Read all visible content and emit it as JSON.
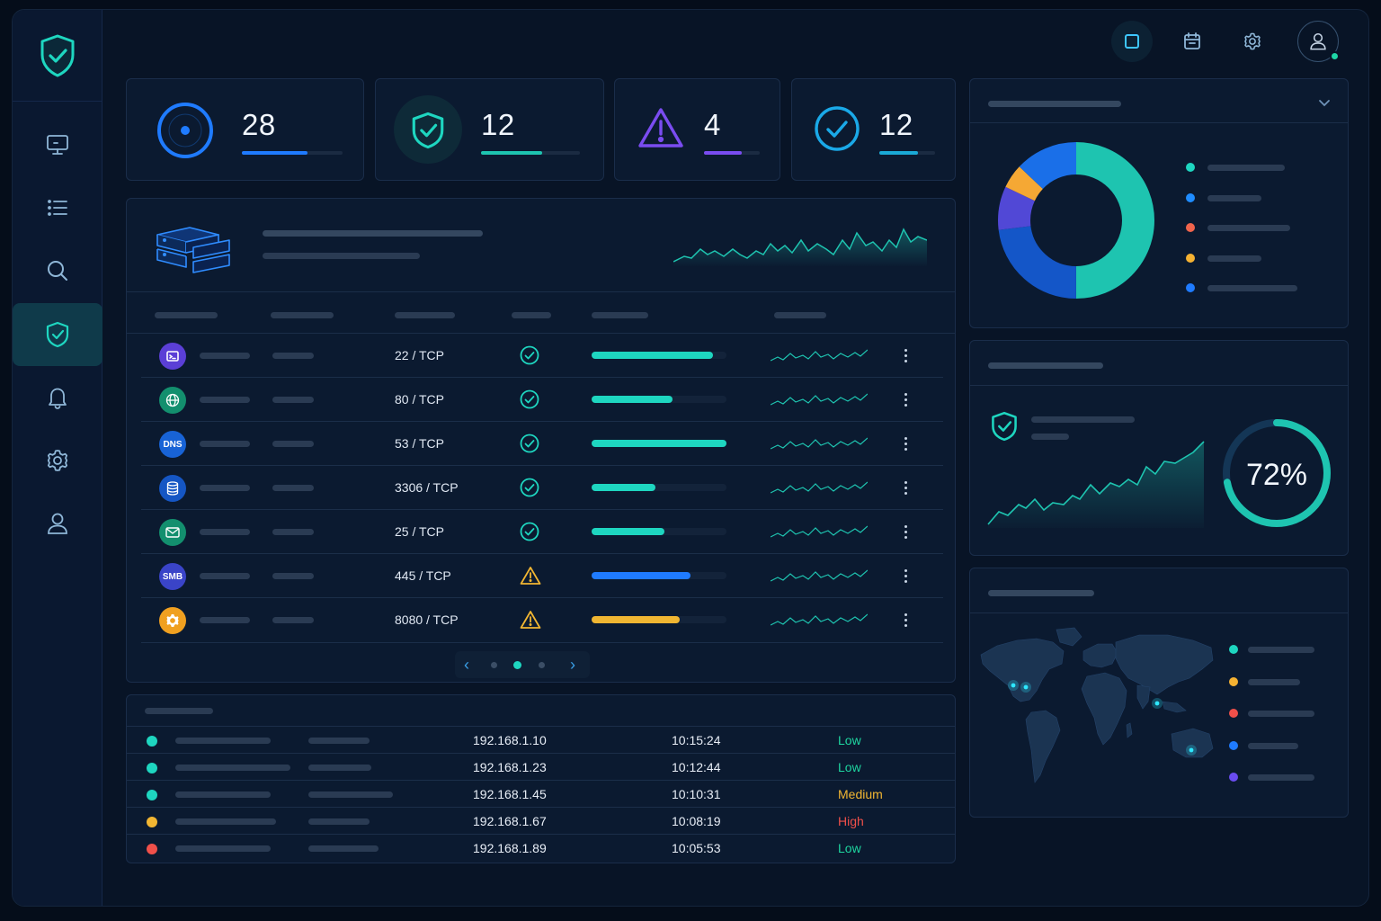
{
  "stats": [
    {
      "value": "28",
      "icon": "radar-icon",
      "color": "#1f7bff",
      "progress": 0.65
    },
    {
      "value": "12",
      "icon": "shield-check-icon",
      "color": "#1ec4b0",
      "progress": 0.62
    },
    {
      "value": "4",
      "icon": "warning-triangle-icon",
      "color": "#7a4cf0",
      "progress": 0.68
    },
    {
      "value": "12",
      "icon": "check-circle-icon",
      "color": "#1aa9d6",
      "progress": 0.7
    }
  ],
  "sidebar": {
    "items": [
      {
        "icon": "monitor-icon"
      },
      {
        "icon": "list-icon"
      },
      {
        "icon": "search-icon"
      },
      {
        "icon": "shield-check-icon",
        "active": true
      },
      {
        "icon": "bell-icon"
      },
      {
        "icon": "gear-icon"
      },
      {
        "icon": "user-icon"
      }
    ]
  },
  "topbar": {
    "icons": [
      "square-icon",
      "calendar-icon",
      "gear-icon",
      "user-icon"
    ]
  },
  "ports": [
    {
      "icon": "terminal-icon",
      "badge": "",
      "color": "#5b3fd6",
      "port": "22 / TCP",
      "status": "ok",
      "fill": 0.9,
      "fill_color": "#1ed6c0"
    },
    {
      "icon": "globe-icon",
      "badge": "",
      "color": "#138f6e",
      "port": "80 / TCP",
      "status": "ok",
      "fill": 0.6,
      "fill_color": "#1ed6c0"
    },
    {
      "icon": "dns-icon",
      "badge": "DNS",
      "color": "#1863d6",
      "port": "53 / TCP",
      "status": "ok",
      "fill": 1.0,
      "fill_color": "#1ed6c0"
    },
    {
      "icon": "database-icon",
      "badge": "",
      "color": "#1556c4",
      "port": "3306 / TCP",
      "status": "ok",
      "fill": 0.47,
      "fill_color": "#1ed6c0"
    },
    {
      "icon": "mail-icon",
      "badge": "",
      "color": "#138f6e",
      "port": "25 / TCP",
      "status": "ok",
      "fill": 0.54,
      "fill_color": "#1ed6c0"
    },
    {
      "icon": "smb-icon",
      "badge": "SMB",
      "color": "#3a44c8",
      "port": "445 / TCP",
      "status": "warn",
      "fill": 0.73,
      "fill_color": "#1f7bff"
    },
    {
      "icon": "gear-icon",
      "badge": "",
      "color": "#f0a020",
      "port": "8080 / TCP",
      "status": "warn",
      "fill": 0.65,
      "fill_color": "#f0b632"
    }
  ],
  "events": [
    {
      "dot": "#1ed6c0",
      "ip": "192.168.1.10",
      "time": "10:15:24",
      "severity": "Low",
      "sev_color": "#1ed6a0"
    },
    {
      "dot": "#1ed6c0",
      "ip": "192.168.1.23",
      "time": "10:12:44",
      "severity": "Low",
      "sev_color": "#1ed6a0"
    },
    {
      "dot": "#1ed6c0",
      "ip": "192.168.1.45",
      "time": "10:10:31",
      "severity": "Medium",
      "sev_color": "#f2b632"
    },
    {
      "dot": "#f2b632",
      "ip": "192.168.1.67",
      "time": "10:08:19",
      "severity": "High",
      "sev_color": "#f0504a"
    },
    {
      "dot": "#f0504a",
      "ip": "192.168.1.89",
      "time": "10:05:53",
      "severity": "Low",
      "sev_color": "#1ed6a0"
    }
  ],
  "donut": {
    "segments": [
      {
        "color": "#1ec4b0",
        "share": 0.5
      },
      {
        "color": "#1456c8",
        "share": 0.23
      },
      {
        "color": "#5148d6",
        "share": 0.09
      },
      {
        "color": "#f5a834",
        "share": 0.05
      },
      {
        "color": "#1a6fe8",
        "share": 0.13
      }
    ],
    "legend_colors": [
      "#1ed6c0",
      "#1f8cff",
      "#f0644c",
      "#f5b232",
      "#1f7bff"
    ]
  },
  "security_score": {
    "value": "72%",
    "fraction": 0.72
  },
  "map": {
    "legend_colors": [
      "#1ed6c0",
      "#f5b232",
      "#f0504a",
      "#1f7bff",
      "#6a4cf0"
    ]
  },
  "colors": {
    "accent": "#1ed6c0",
    "background": "#081426",
    "card": "#0b1a30"
  }
}
